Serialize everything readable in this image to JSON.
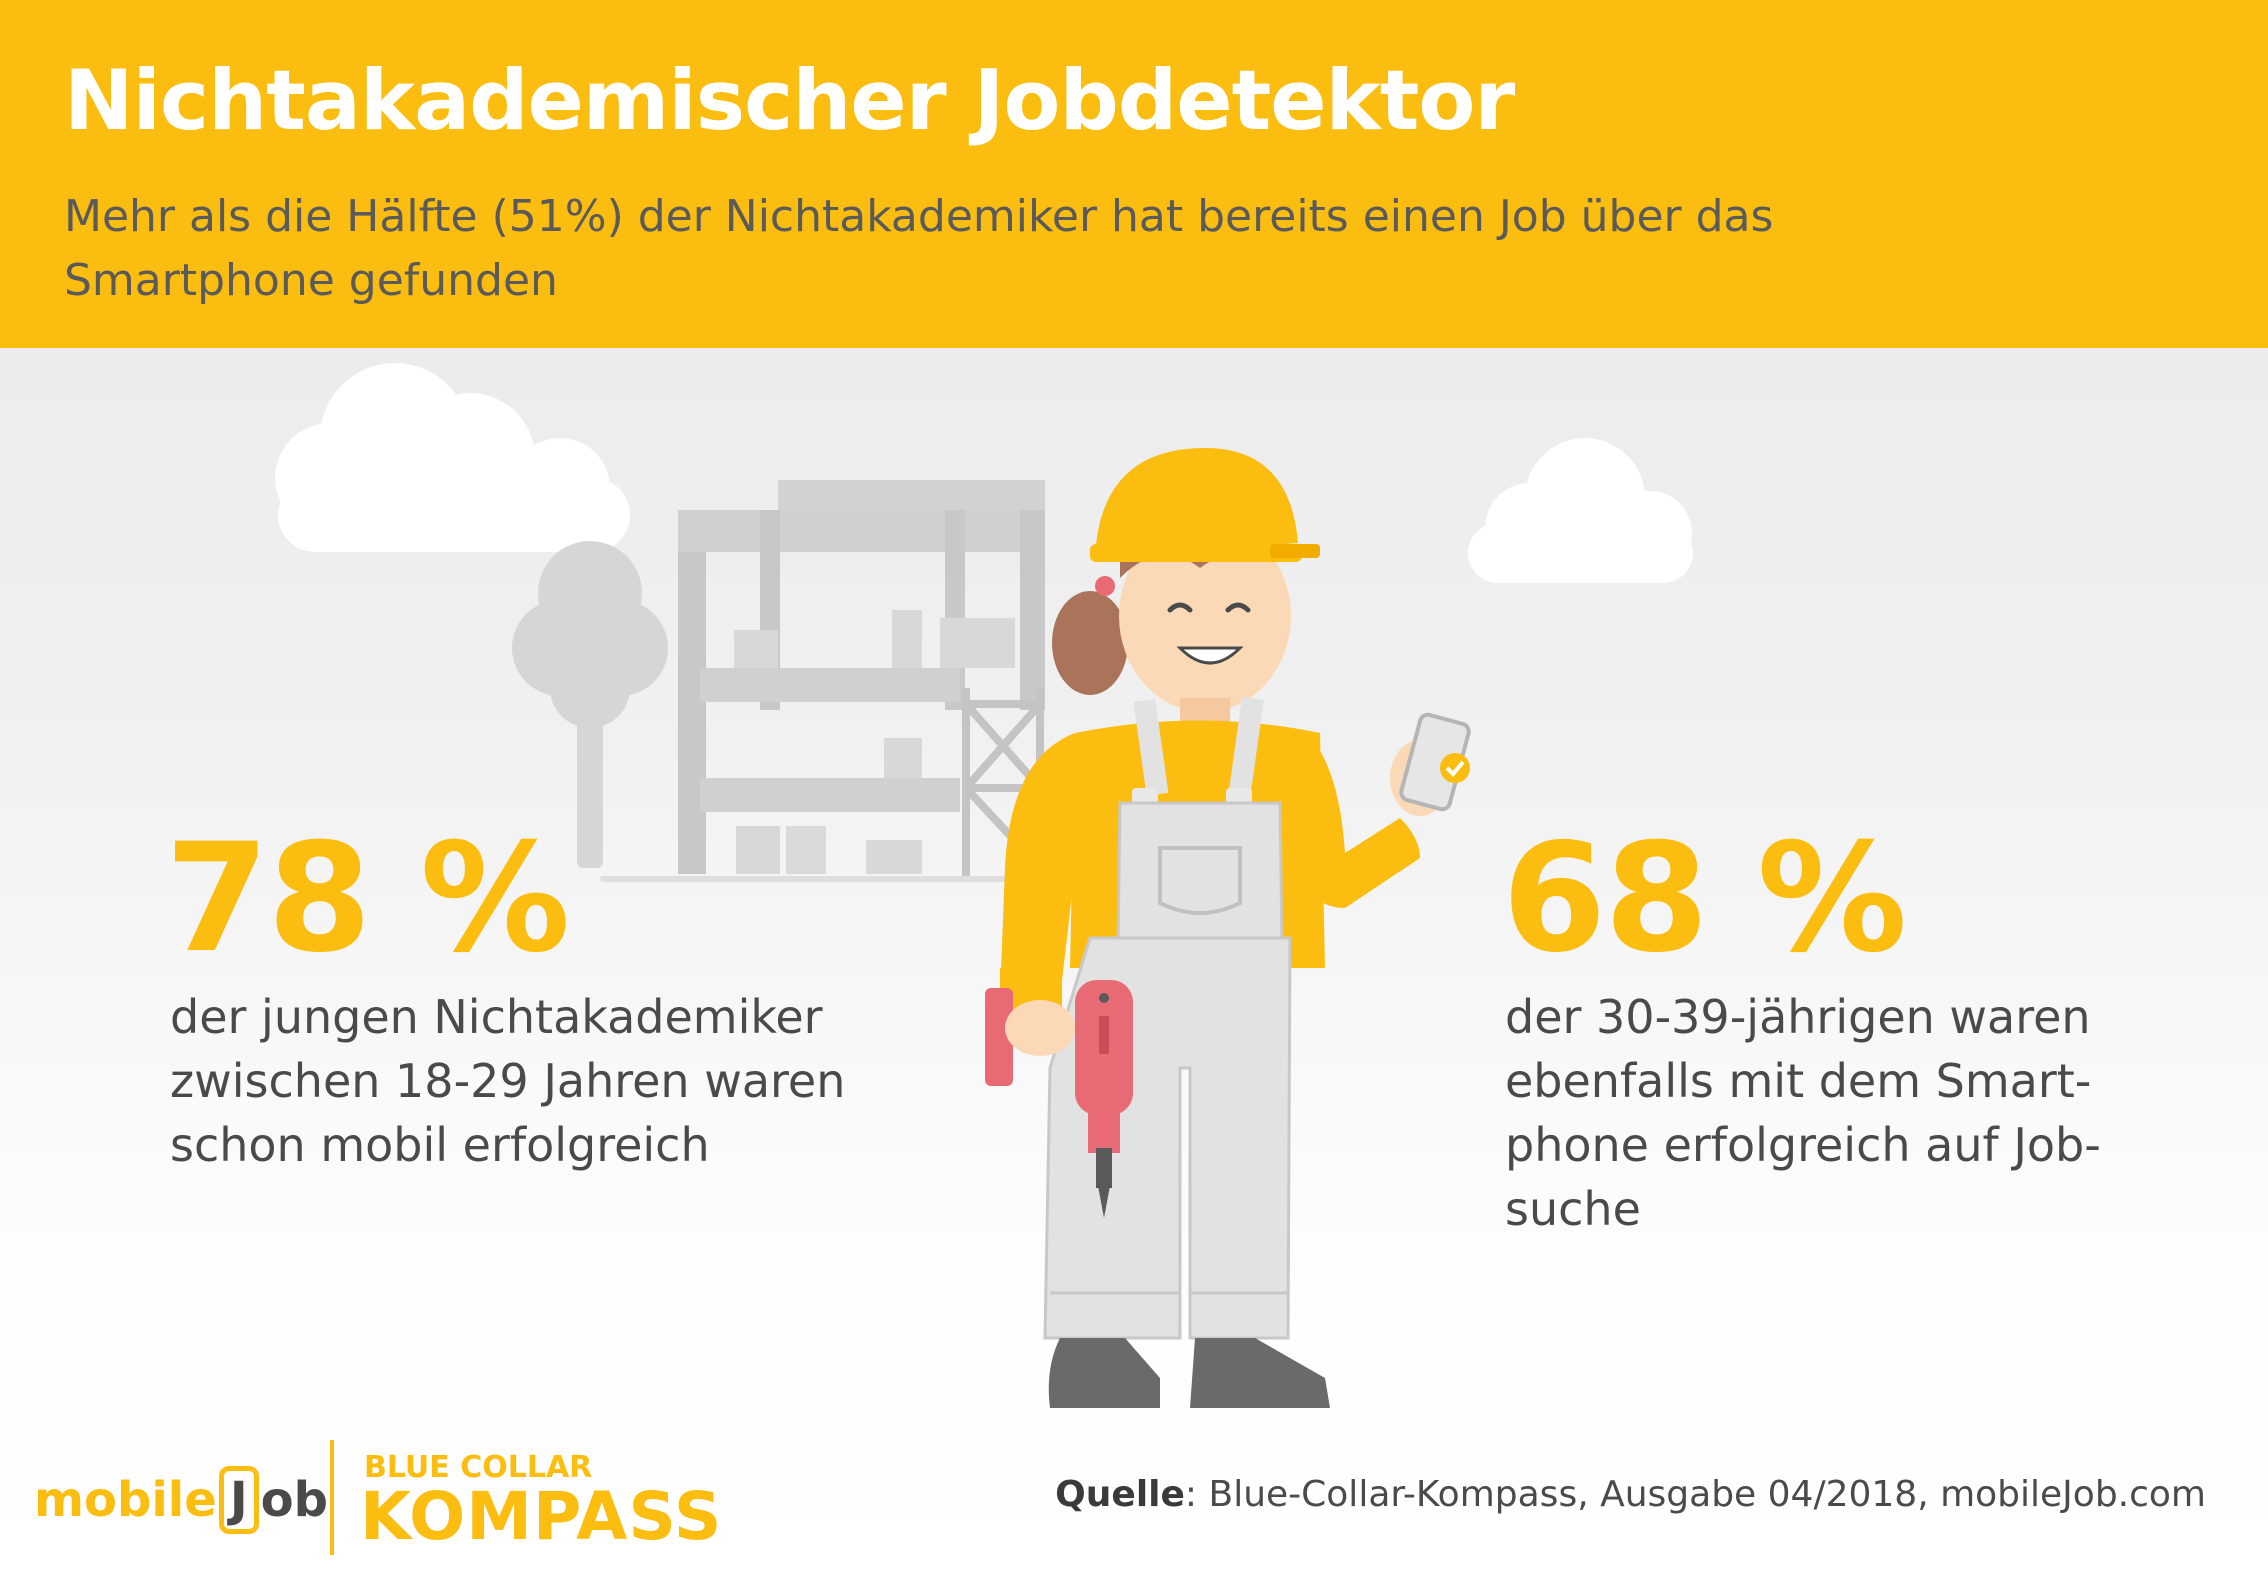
{
  "header": {
    "title": "Nichtakademischer Jobdetektor",
    "subtitle": "Mehr als die Hälfte (51%) der Nichtakademiker hat bereits einen Job über das Smartphone gefunden"
  },
  "stats": [
    {
      "value": "78 %",
      "text": "der jungen Nichtakademiker zwischen 18-29 Jahren waren schon mobil erfolgreich"
    },
    {
      "value": "68 %",
      "text": "der 30-39-jährigen waren ebenfalls mit dem Smart-phone erfolgreich auf Job-suche"
    }
  ],
  "footer": {
    "logo_mobilejob": {
      "prefix": "mobile",
      "j": "J",
      "rest": "ob"
    },
    "logo_bck_top": "BLUE COLLAR",
    "logo_bck_bottom": "KOMPASS",
    "source_label": "Quelle",
    "source_text": ": Blue-Collar-Kompass, Ausgabe 04/2018, mobileJob.com"
  },
  "colors": {
    "accent": "#fbbd0f",
    "text": "#4a4a4a",
    "subtitle": "#5a5a5a"
  },
  "icons": [
    "cloud-icon",
    "tree-icon",
    "building-icon",
    "scaffold-icon",
    "worker-illustration",
    "smartphone-icon",
    "drill-icon"
  ]
}
